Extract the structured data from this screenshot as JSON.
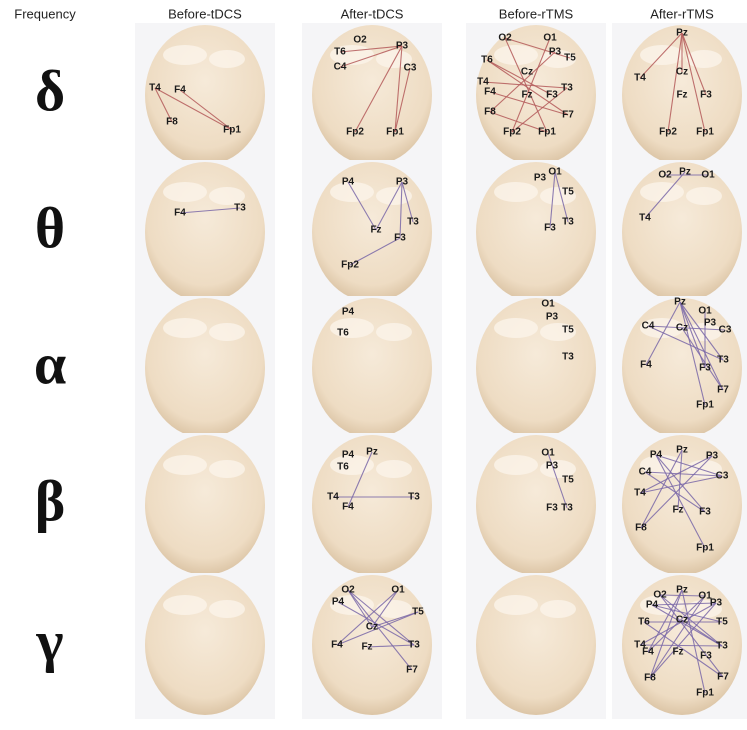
{
  "header": {
    "columns": [
      "Frequency",
      "Before-tDCS",
      "After-tDCS",
      "Before-rTMS",
      "After-rTMS"
    ]
  },
  "rows": [
    {
      "band": "δ",
      "cells": [
        [
          "T4",
          "F4",
          "F8",
          "Fp1"
        ],
        [
          "O2",
          "T6",
          "P3",
          "C4",
          "C3",
          "Fp2",
          "Fp1"
        ],
        [
          "O2",
          "O1",
          "P3",
          "T6",
          "T5",
          "Cz",
          "T4",
          "F4",
          "Fz",
          "F3",
          "T3",
          "F8",
          "F7",
          "Fp2",
          "Fp1"
        ],
        [
          "Pz",
          "T4",
          "Cz",
          "Fz",
          "F3",
          "Fp2",
          "Fp1"
        ]
      ]
    },
    {
      "band": "θ",
      "cells": [
        [
          "F4",
          "T3"
        ],
        [
          "P4",
          "P3",
          "Fz",
          "T3",
          "F3",
          "Fp2"
        ],
        [
          "P3",
          "O1",
          "T5",
          "F3",
          "T3"
        ],
        [
          "O2",
          "Pz",
          "O1",
          "T4"
        ]
      ]
    },
    {
      "band": "α",
      "cells": [
        [],
        [
          "P4",
          "T6"
        ],
        [
          "O1",
          "P3",
          "T5",
          "T3"
        ],
        [
          "Pz",
          "O1",
          "C4",
          "Cz",
          "P3",
          "C3",
          "T3",
          "F4",
          "F3",
          "F7",
          "Fp1"
        ]
      ]
    },
    {
      "band": "β",
      "cells": [
        [],
        [
          "P4",
          "Pz",
          "T6",
          "T4",
          "F4",
          "T3"
        ],
        [
          "O1",
          "P3",
          "T5",
          "F3",
          "T3"
        ],
        [
          "P4",
          "Pz",
          "P3",
          "C4",
          "C3",
          "T4",
          "F8",
          "Fz",
          "F3",
          "Fp1"
        ]
      ]
    },
    {
      "band": "γ",
      "cells": [
        [],
        [
          "O2",
          "O1",
          "P4",
          "T5",
          "Cz",
          "F4",
          "Fz",
          "T3",
          "F7"
        ],
        [],
        [
          "Pz",
          "O2",
          "O1",
          "P4",
          "P3",
          "T6",
          "Cz",
          "T5",
          "T4",
          "F4",
          "Fz",
          "F3",
          "T3",
          "F8",
          "F7",
          "Fp1"
        ]
      ]
    }
  ]
}
